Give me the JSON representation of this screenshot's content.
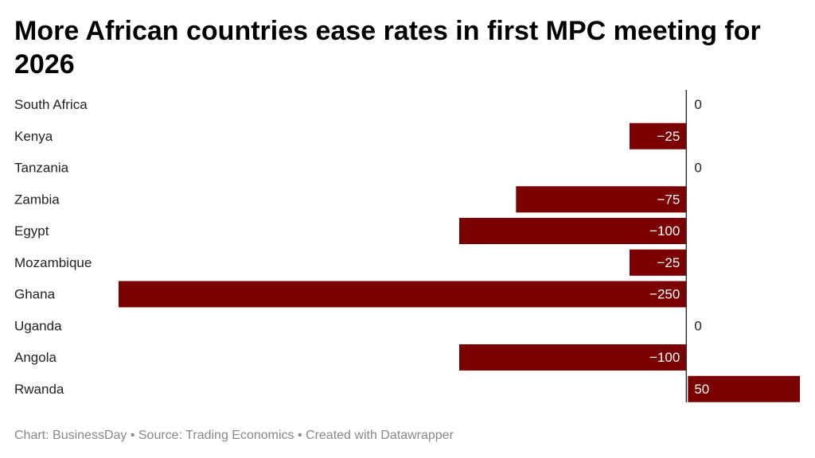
{
  "chart_data": {
    "type": "bar",
    "orientation": "horizontal",
    "title": "More African countries ease rates in first MPC meeting for 2026",
    "categories": [
      "South Africa",
      "Kenya",
      "Tanzania",
      "Zambia",
      "Egypt",
      "Mozambique",
      "Ghana",
      "Uganda",
      "Angola",
      "Rwanda"
    ],
    "values": [
      0,
      -25,
      0,
      -75,
      -100,
      -25,
      -250,
      0,
      -100,
      50
    ],
    "value_labels": [
      "0",
      "−25",
      "0",
      "−75",
      "−100",
      "−25",
      "−250",
      "0",
      "−100",
      "50"
    ],
    "xlim": [
      -250,
      50
    ],
    "grid": false,
    "bar_color": "#7b0000"
  },
  "footer": "Chart: BusinessDay • Source: Trading Economics • Created with Datawrapper"
}
